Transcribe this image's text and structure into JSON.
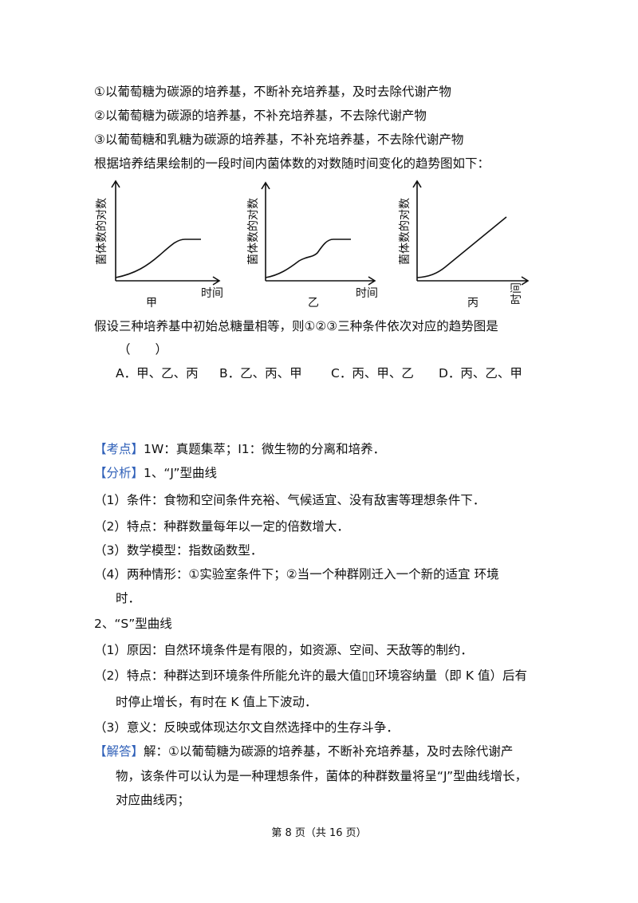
{
  "intro": [
    "①以葡萄糖为碳源的培养基，不断补充培养基，及时去除代谢产物",
    "②以葡萄糖为碳源的培养基，不补充培养基，不去除代谢产物",
    "③以葡萄糖和乳糖为碳源的培养基，不补充培养基，不去除代谢产物",
    "根据培养结果绘制的一段时间内菌体数的对数随时间变化的趋势图如下："
  ],
  "graphs": [
    {
      "ylabel": "菌体数的对数",
      "xlabel": "时间",
      "caption": "甲"
    },
    {
      "ylabel": "菌体数的对数",
      "xlabel": "时间",
      "caption": "乙"
    },
    {
      "ylabel": "菌体数的对数",
      "xlabel": "时间",
      "caption": "丙"
    }
  ],
  "question": "假设三种培养基中初始总糖量相等，则①②③三种条件依次对应的趋势图是",
  "blank": "（　　）",
  "options": [
    "A．甲、乙、丙",
    "B．乙、丙、甲",
    "C．丙、甲、乙",
    "D．丙、乙、甲"
  ],
  "analysis": [
    {
      "tag": "【考点】",
      "text": "1W：真题集萃；I1：微生物的分离和培养．"
    },
    {
      "tag": "【分析】",
      "text": "1、“J”型曲线"
    },
    {
      "text": "（1）条件：食物和空间条件充裕、气候适宜、没有敌害等理想条件下．"
    },
    {
      "text": "（2）特点：种群数量每年以一定的倍数增大．"
    },
    {
      "text": "（3）数学模型：指数函数型．"
    },
    {
      "text": "（4）两种情形：①实验室条件下；②当一个种群刚迁入一个新的适宜 环境"
    },
    {
      "text": "时．"
    },
    {
      "text": "2、“S”型曲线"
    },
    {
      "text": "（1）原因：自然环境条件是有限的，如资源、空间、天敌等的制约．"
    },
    {
      "text": "（2）特点：种群达到环境条件所能允许的最大值▯▯环境容纳量（即 K 值）后有"
    },
    {
      "text": "时停止增长，有时在 K 值上下波动．"
    },
    {
      "text": "（3）意义：反映或体现达尔文自然选择中的生存斗争．"
    },
    {
      "tag": "【解答】",
      "text": "解：①以葡萄糖为碳源的培养基，不断补充培养基，及时去除代谢产"
    },
    {
      "text": "物，该条件可以认为是一种理想条件，菌体的种群数量将呈“J”型曲线增长，"
    },
    {
      "text": "对应曲线丙；"
    }
  ],
  "footer": "第 8 页（共 16 页）"
}
